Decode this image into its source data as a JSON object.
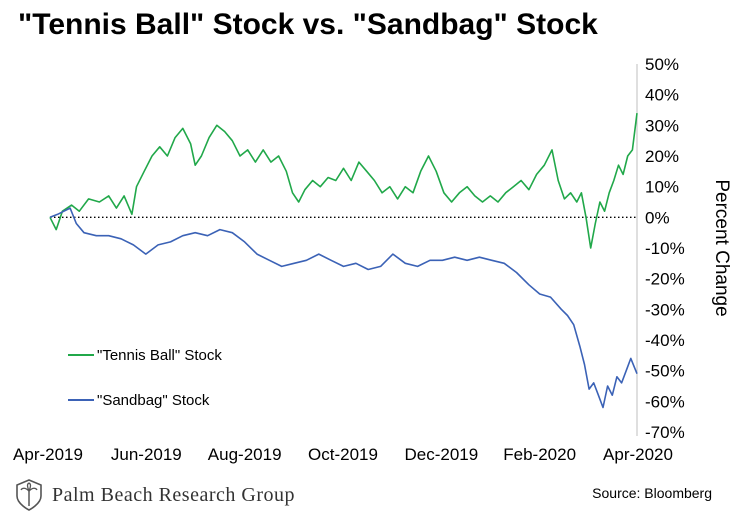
{
  "colors": {
    "tennis_ball": "#21a84a",
    "sandbag": "#3b62b6"
  },
  "footer": {
    "brand_name": "Palm Beach Research Group",
    "source": "Source: Bloomberg"
  },
  "chart_data": {
    "type": "line",
    "title": "\"Tennis Ball\" Stock vs. \"Sandbag\" Stock",
    "ylabel": "Percent Change",
    "xlabel": "",
    "x_tick_labels": [
      "Apr-2019",
      "Jun-2019",
      "Aug-2019",
      "Oct-2019",
      "Dec-2019",
      "Feb-2020",
      "Apr-2020"
    ],
    "x_range": [
      "2019-04-01",
      "2020-04-15"
    ],
    "y_tick_labels": [
      "50%",
      "40%",
      "30%",
      "20%",
      "10%",
      "0%",
      "-10%",
      "-20%",
      "-30%",
      "-40%",
      "-50%",
      "-60%",
      "-70%"
    ],
    "ylim": [
      -70,
      50
    ],
    "y_axis_side": "right",
    "zero_line": "dotted",
    "grid": false,
    "legend_placement": "lower-left",
    "series": [
      {
        "name": "\"Tennis Ball\" Stock",
        "color_key": "tennis_ball",
        "points": [
          [
            "2019-04-01",
            0
          ],
          [
            "2019-04-05",
            -4
          ],
          [
            "2019-04-09",
            2
          ],
          [
            "2019-04-15",
            4
          ],
          [
            "2019-04-20",
            2
          ],
          [
            "2019-04-26",
            6
          ],
          [
            "2019-05-03",
            5
          ],
          [
            "2019-05-09",
            7
          ],
          [
            "2019-05-14",
            3
          ],
          [
            "2019-05-19",
            7
          ],
          [
            "2019-05-24",
            1
          ],
          [
            "2019-05-27",
            10
          ],
          [
            "2019-06-01",
            15
          ],
          [
            "2019-06-06",
            20
          ],
          [
            "2019-06-11",
            23
          ],
          [
            "2019-06-16",
            20
          ],
          [
            "2019-06-21",
            26
          ],
          [
            "2019-06-26",
            29
          ],
          [
            "2019-07-01",
            24
          ],
          [
            "2019-07-04",
            17
          ],
          [
            "2019-07-08",
            20
          ],
          [
            "2019-07-13",
            26
          ],
          [
            "2019-07-18",
            30
          ],
          [
            "2019-07-23",
            28
          ],
          [
            "2019-07-28",
            25
          ],
          [
            "2019-08-02",
            20
          ],
          [
            "2019-08-07",
            22
          ],
          [
            "2019-08-12",
            18
          ],
          [
            "2019-08-17",
            22
          ],
          [
            "2019-08-22",
            18
          ],
          [
            "2019-08-27",
            20
          ],
          [
            "2019-09-01",
            15
          ],
          [
            "2019-09-05",
            8
          ],
          [
            "2019-09-09",
            5
          ],
          [
            "2019-09-13",
            9
          ],
          [
            "2019-09-18",
            12
          ],
          [
            "2019-09-23",
            10
          ],
          [
            "2019-09-28",
            13
          ],
          [
            "2019-10-03",
            12
          ],
          [
            "2019-10-08",
            16
          ],
          [
            "2019-10-13",
            12
          ],
          [
            "2019-10-18",
            18
          ],
          [
            "2019-10-23",
            15
          ],
          [
            "2019-10-28",
            12
          ],
          [
            "2019-11-02",
            8
          ],
          [
            "2019-11-07",
            10
          ],
          [
            "2019-11-12",
            6
          ],
          [
            "2019-11-17",
            10
          ],
          [
            "2019-11-22",
            8
          ],
          [
            "2019-11-27",
            15
          ],
          [
            "2019-12-02",
            20
          ],
          [
            "2019-12-07",
            15
          ],
          [
            "2019-12-12",
            8
          ],
          [
            "2019-12-17",
            5
          ],
          [
            "2019-12-22",
            8
          ],
          [
            "2019-12-27",
            10
          ],
          [
            "2020-01-01",
            7
          ],
          [
            "2020-01-06",
            5
          ],
          [
            "2020-01-11",
            7
          ],
          [
            "2020-01-16",
            5
          ],
          [
            "2020-01-21",
            8
          ],
          [
            "2020-01-26",
            10
          ],
          [
            "2020-01-31",
            12
          ],
          [
            "2020-02-05",
            9
          ],
          [
            "2020-02-10",
            14
          ],
          [
            "2020-02-15",
            17
          ],
          [
            "2020-02-20",
            22
          ],
          [
            "2020-02-24",
            12
          ],
          [
            "2020-02-28",
            6
          ],
          [
            "2020-03-03",
            8
          ],
          [
            "2020-03-07",
            5
          ],
          [
            "2020-03-10",
            8
          ],
          [
            "2020-03-13",
            0
          ],
          [
            "2020-03-16",
            -10
          ],
          [
            "2020-03-19",
            -2
          ],
          [
            "2020-03-22",
            5
          ],
          [
            "2020-03-25",
            2
          ],
          [
            "2020-03-28",
            8
          ],
          [
            "2020-03-31",
            12
          ],
          [
            "2020-04-03",
            17
          ],
          [
            "2020-04-06",
            14
          ],
          [
            "2020-04-09",
            20
          ],
          [
            "2020-04-12",
            22
          ],
          [
            "2020-04-15",
            34
          ]
        ]
      },
      {
        "name": "\"Sandbag\" Stock",
        "color_key": "sandbag",
        "points": [
          [
            "2019-04-01",
            0
          ],
          [
            "2019-04-06",
            1
          ],
          [
            "2019-04-10",
            2
          ],
          [
            "2019-04-14",
            3
          ],
          [
            "2019-04-18",
            -2
          ],
          [
            "2019-04-23",
            -5
          ],
          [
            "2019-05-01",
            -6
          ],
          [
            "2019-05-09",
            -6
          ],
          [
            "2019-05-17",
            -7
          ],
          [
            "2019-05-25",
            -9
          ],
          [
            "2019-06-02",
            -12
          ],
          [
            "2019-06-10",
            -9
          ],
          [
            "2019-06-18",
            -8
          ],
          [
            "2019-06-26",
            -6
          ],
          [
            "2019-07-04",
            -5
          ],
          [
            "2019-07-12",
            -6
          ],
          [
            "2019-07-20",
            -4
          ],
          [
            "2019-07-28",
            -5
          ],
          [
            "2019-08-05",
            -8
          ],
          [
            "2019-08-13",
            -12
          ],
          [
            "2019-08-21",
            -14
          ],
          [
            "2019-08-29",
            -16
          ],
          [
            "2019-09-06",
            -15
          ],
          [
            "2019-09-14",
            -14
          ],
          [
            "2019-09-22",
            -12
          ],
          [
            "2019-09-30",
            -14
          ],
          [
            "2019-10-08",
            -16
          ],
          [
            "2019-10-16",
            -15
          ],
          [
            "2019-10-24",
            -17
          ],
          [
            "2019-11-01",
            -16
          ],
          [
            "2019-11-09",
            -12
          ],
          [
            "2019-11-17",
            -15
          ],
          [
            "2019-11-25",
            -16
          ],
          [
            "2019-12-03",
            -14
          ],
          [
            "2019-12-11",
            -14
          ],
          [
            "2019-12-19",
            -13
          ],
          [
            "2019-12-27",
            -14
          ],
          [
            "2020-01-04",
            -13
          ],
          [
            "2020-01-12",
            -14
          ],
          [
            "2020-01-20",
            -15
          ],
          [
            "2020-01-28",
            -18
          ],
          [
            "2020-02-05",
            -22
          ],
          [
            "2020-02-12",
            -25
          ],
          [
            "2020-02-19",
            -26
          ],
          [
            "2020-02-26",
            -30
          ],
          [
            "2020-03-01",
            -32
          ],
          [
            "2020-03-05",
            -35
          ],
          [
            "2020-03-09",
            -42
          ],
          [
            "2020-03-12",
            -48
          ],
          [
            "2020-03-15",
            -56
          ],
          [
            "2020-03-18",
            -54
          ],
          [
            "2020-03-21",
            -58
          ],
          [
            "2020-03-24",
            -62
          ],
          [
            "2020-03-27",
            -55
          ],
          [
            "2020-03-30",
            -58
          ],
          [
            "2020-04-02",
            -52
          ],
          [
            "2020-04-05",
            -54
          ],
          [
            "2020-04-08",
            -50
          ],
          [
            "2020-04-11",
            -46
          ],
          [
            "2020-04-15",
            -51
          ]
        ]
      }
    ]
  }
}
